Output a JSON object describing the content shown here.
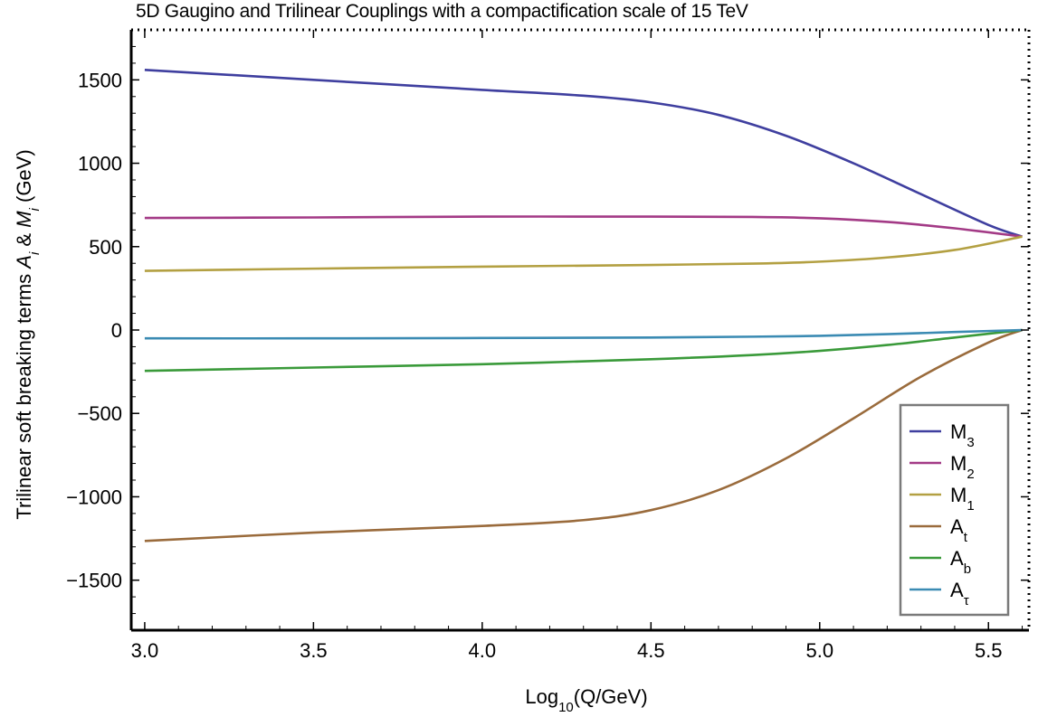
{
  "chart_data": {
    "type": "line",
    "title": "5D Gaugino and Trilinear Couplings with a compactification scale of 15 TeV",
    "xlabel": {
      "base": "Log",
      "sub": "10",
      "rest": "(Q/GeV)"
    },
    "ylabel": {
      "prefix": "Trilinear  soft breaking terms ",
      "a": "A",
      "a_sub": "i",
      "amp": " & ",
      "m": "M",
      "m_sub": "i",
      "suffix": " (GeV)"
    },
    "xlim": [
      2.96,
      5.62
    ],
    "ylim": [
      -1800,
      1800
    ],
    "x_ticks": [
      "3.0",
      "3.5",
      "4.0",
      "4.5",
      "5.0",
      "5.5"
    ],
    "y_ticks": [
      "1500",
      "1000",
      "500",
      "0",
      "−500",
      "−1000",
      "−1500"
    ],
    "legend_position": "bottom-right",
    "series": [
      {
        "name": "M",
        "sub": "3",
        "color": "#3f3f9f",
        "x": [
          3.0,
          3.5,
          4.0,
          4.3,
          4.5,
          4.7,
          4.9,
          5.1,
          5.3,
          5.5,
          5.6
        ],
        "y": [
          1560,
          1500,
          1440,
          1405,
          1365,
          1290,
          1165,
          1000,
          815,
          630,
          560
        ]
      },
      {
        "name": "M",
        "sub": "2",
        "color": "#a33a86",
        "x": [
          3.0,
          3.5,
          4.0,
          4.5,
          4.8,
          5.0,
          5.2,
          5.4,
          5.6
        ],
        "y": [
          672,
          675,
          680,
          680,
          678,
          670,
          648,
          610,
          560
        ]
      },
      {
        "name": "M",
        "sub": "1",
        "color": "#b3a042",
        "x": [
          3.0,
          3.5,
          4.0,
          4.5,
          4.8,
          5.0,
          5.2,
          5.4,
          5.6
        ],
        "y": [
          355,
          368,
          380,
          390,
          398,
          410,
          435,
          480,
          560
        ]
      },
      {
        "name": "A",
        "sub": "t",
        "color": "#9a6b3c",
        "x": [
          3.0,
          3.5,
          4.0,
          4.3,
          4.5,
          4.7,
          4.9,
          5.1,
          5.3,
          5.5,
          5.6
        ],
        "y": [
          -1265,
          -1215,
          -1175,
          -1140,
          -1080,
          -960,
          -770,
          -530,
          -280,
          -75,
          0
        ]
      },
      {
        "name": "A",
        "sub": "b",
        "color": "#3a9a3a",
        "x": [
          3.0,
          3.5,
          4.0,
          4.5,
          4.8,
          5.0,
          5.2,
          5.4,
          5.6
        ],
        "y": [
          -245,
          -225,
          -205,
          -175,
          -150,
          -125,
          -90,
          -45,
          0
        ]
      },
      {
        "name": "A",
        "sub": "τ",
        "color": "#3b8bb3",
        "x": [
          3.0,
          3.5,
          4.0,
          4.5,
          4.8,
          5.0,
          5.2,
          5.4,
          5.6
        ],
        "y": [
          -50,
          -50,
          -48,
          -45,
          -40,
          -35,
          -25,
          -12,
          0
        ]
      }
    ]
  }
}
